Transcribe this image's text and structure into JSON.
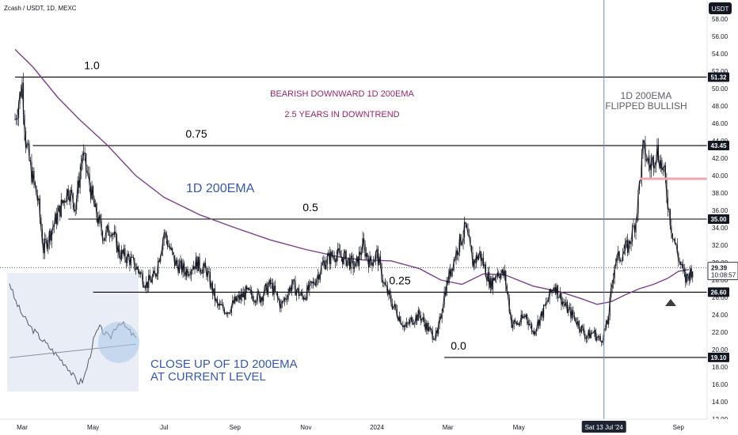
{
  "header": {
    "symbol": "Zcash / USDT, 1D, MEXC",
    "currency_button": "USDT"
  },
  "chart_data": {
    "type": "candlestick",
    "title": "Zcash / USDT, 1D, MEXC",
    "ylim": [
      12,
      58
    ],
    "y_ticks": [
      12,
      14,
      16,
      18,
      20,
      22,
      24,
      26,
      28,
      30,
      32,
      34,
      36,
      38,
      40,
      42,
      44,
      46,
      48,
      50,
      52,
      54,
      56,
      58
    ],
    "x_ticks": [
      "Mar",
      "May",
      "Jul",
      "Sep",
      "Nov",
      "2024",
      "Mar",
      "May",
      "Sep"
    ],
    "x_tick_months": [
      0,
      2,
      4,
      6,
      8,
      10,
      12,
      14,
      18.5
    ],
    "crosshair": {
      "label": "Sat 13 Jul '24",
      "month": 16.4
    },
    "price_series": {
      "name": "Zcash / USDT",
      "months": [
        -0.2,
        0.0,
        0.1,
        0.25,
        0.45,
        0.6,
        0.85,
        1.05,
        1.3,
        1.5,
        1.7,
        1.9,
        2.05,
        2.3,
        2.5,
        2.75,
        3.0,
        3.3,
        3.5,
        3.75,
        4.0,
        4.3,
        4.6,
        4.9,
        5.2,
        5.5,
        5.8,
        6.0,
        6.3,
        6.7,
        7.0,
        7.3,
        7.6,
        7.9,
        8.2,
        8.5,
        8.8,
        9.1,
        9.4,
        9.6,
        9.8,
        10.0,
        10.2,
        10.4,
        10.6,
        10.8,
        11.0,
        11.2,
        11.5,
        11.7,
        11.9,
        12.1,
        12.3,
        12.5,
        12.7,
        12.9,
        13.2,
        13.4,
        13.6,
        13.8,
        14.0,
        14.2,
        14.4,
        14.7,
        15.0,
        15.3,
        15.6,
        15.9,
        16.1,
        16.3,
        16.5,
        16.7,
        16.9,
        17.1,
        17.3,
        17.5,
        17.7,
        17.9,
        18.1,
        18.3,
        18.5,
        18.7,
        18.9
      ],
      "close": [
        46.5,
        50.5,
        44.0,
        40.5,
        37.0,
        31.5,
        34.0,
        36.0,
        38.5,
        36.5,
        42.5,
        39.0,
        36.0,
        33.0,
        34.0,
        31.0,
        30.5,
        29.0,
        27.5,
        28.5,
        33.5,
        30.0,
        29.0,
        30.0,
        29.0,
        25.0,
        24.5,
        25.5,
        26.5,
        26.0,
        27.5,
        25.0,
        27.5,
        26.0,
        27.5,
        30.0,
        31.0,
        30.5,
        29.5,
        32.0,
        30.0,
        31.0,
        27.5,
        25.5,
        24.0,
        22.5,
        23.5,
        24.0,
        22.0,
        21.5,
        26.5,
        29.5,
        32.0,
        34.0,
        30.0,
        31.0,
        27.5,
        29.0,
        28.5,
        23.0,
        23.0,
        24.0,
        22.0,
        24.5,
        27.5,
        25.0,
        23.5,
        21.5,
        22.0,
        21.0,
        23.0,
        30.0,
        31.0,
        32.0,
        35.0,
        43.0,
        41.0,
        43.0,
        40.0,
        34.0,
        30.5,
        28.0,
        29.39
      ]
    },
    "ema_series": {
      "name": "1D 200EMA",
      "months": [
        -0.2,
        0.3,
        1.0,
        1.6,
        2.4,
        3.2,
        4.0,
        5.0,
        6.0,
        7.0,
        8.0,
        9.0,
        9.6,
        10.4,
        11.2,
        11.8,
        12.4,
        13.0,
        13.6,
        14.4,
        15.2,
        15.8,
        16.2,
        16.6,
        17.0,
        17.4,
        17.8,
        18.2,
        18.5,
        18.8
      ],
      "values": [
        54.5,
        52.5,
        49.0,
        46.5,
        43.5,
        40.0,
        37.5,
        35.5,
        34.0,
        32.6,
        31.5,
        30.6,
        30.3,
        30.2,
        29.3,
        28.0,
        27.5,
        28.7,
        28.6,
        27.3,
        26.6,
        25.8,
        25.2,
        25.5,
        26.3,
        27.0,
        27.5,
        28.2,
        29.0,
        29.2
      ]
    },
    "fib_levels": [
      {
        "label": "1.0",
        "value": 51.32,
        "start_month": -0.2
      },
      {
        "label": "0.75",
        "value": 43.45,
        "start_month": 0.3
      },
      {
        "label": "0.5",
        "value": 35.0,
        "start_month": 1.3
      },
      {
        "label": "0.25",
        "value": 26.6,
        "start_month": 2.0
      },
      {
        "label": "0.0",
        "value": 19.1,
        "start_month": 11.9
      }
    ],
    "price_tags": [
      {
        "value": 51.32,
        "text": "51.32"
      },
      {
        "value": 43.45,
        "text": "43.45"
      },
      {
        "value": 35.0,
        "text": "35.00"
      },
      {
        "value": 26.6,
        "text": "26.60"
      },
      {
        "value": 19.1,
        "text": "19.10"
      }
    ],
    "current_price": {
      "value": 29.39,
      "text": "29.39",
      "countdown": "10:08:57"
    },
    "annotations": {
      "bearish_line1": "BEARISH DOWNWARD 1D 200EMA",
      "bearish_line2": "2.5 YEARS IN DOWNTREND",
      "flipped_line1": "1D 200EMA",
      "flipped_line2": "FLIPPED BULLISH",
      "ema_label": "1D 200EMA",
      "closeup_line1": "CLOSE UP OF 1D 200EMA",
      "closeup_line2": "AT CURRENT LEVEL"
    },
    "colors": {
      "price": "#131722",
      "ema": "#7b3f8c",
      "fib_line": "#000000",
      "crosshair": "#6a8cba",
      "tag_bg": "#131722",
      "tag_text": "#ffffff",
      "purple_text": "#9c2766",
      "blue_text": "#3558b5",
      "closeup_box": "#e9eef6"
    }
  }
}
